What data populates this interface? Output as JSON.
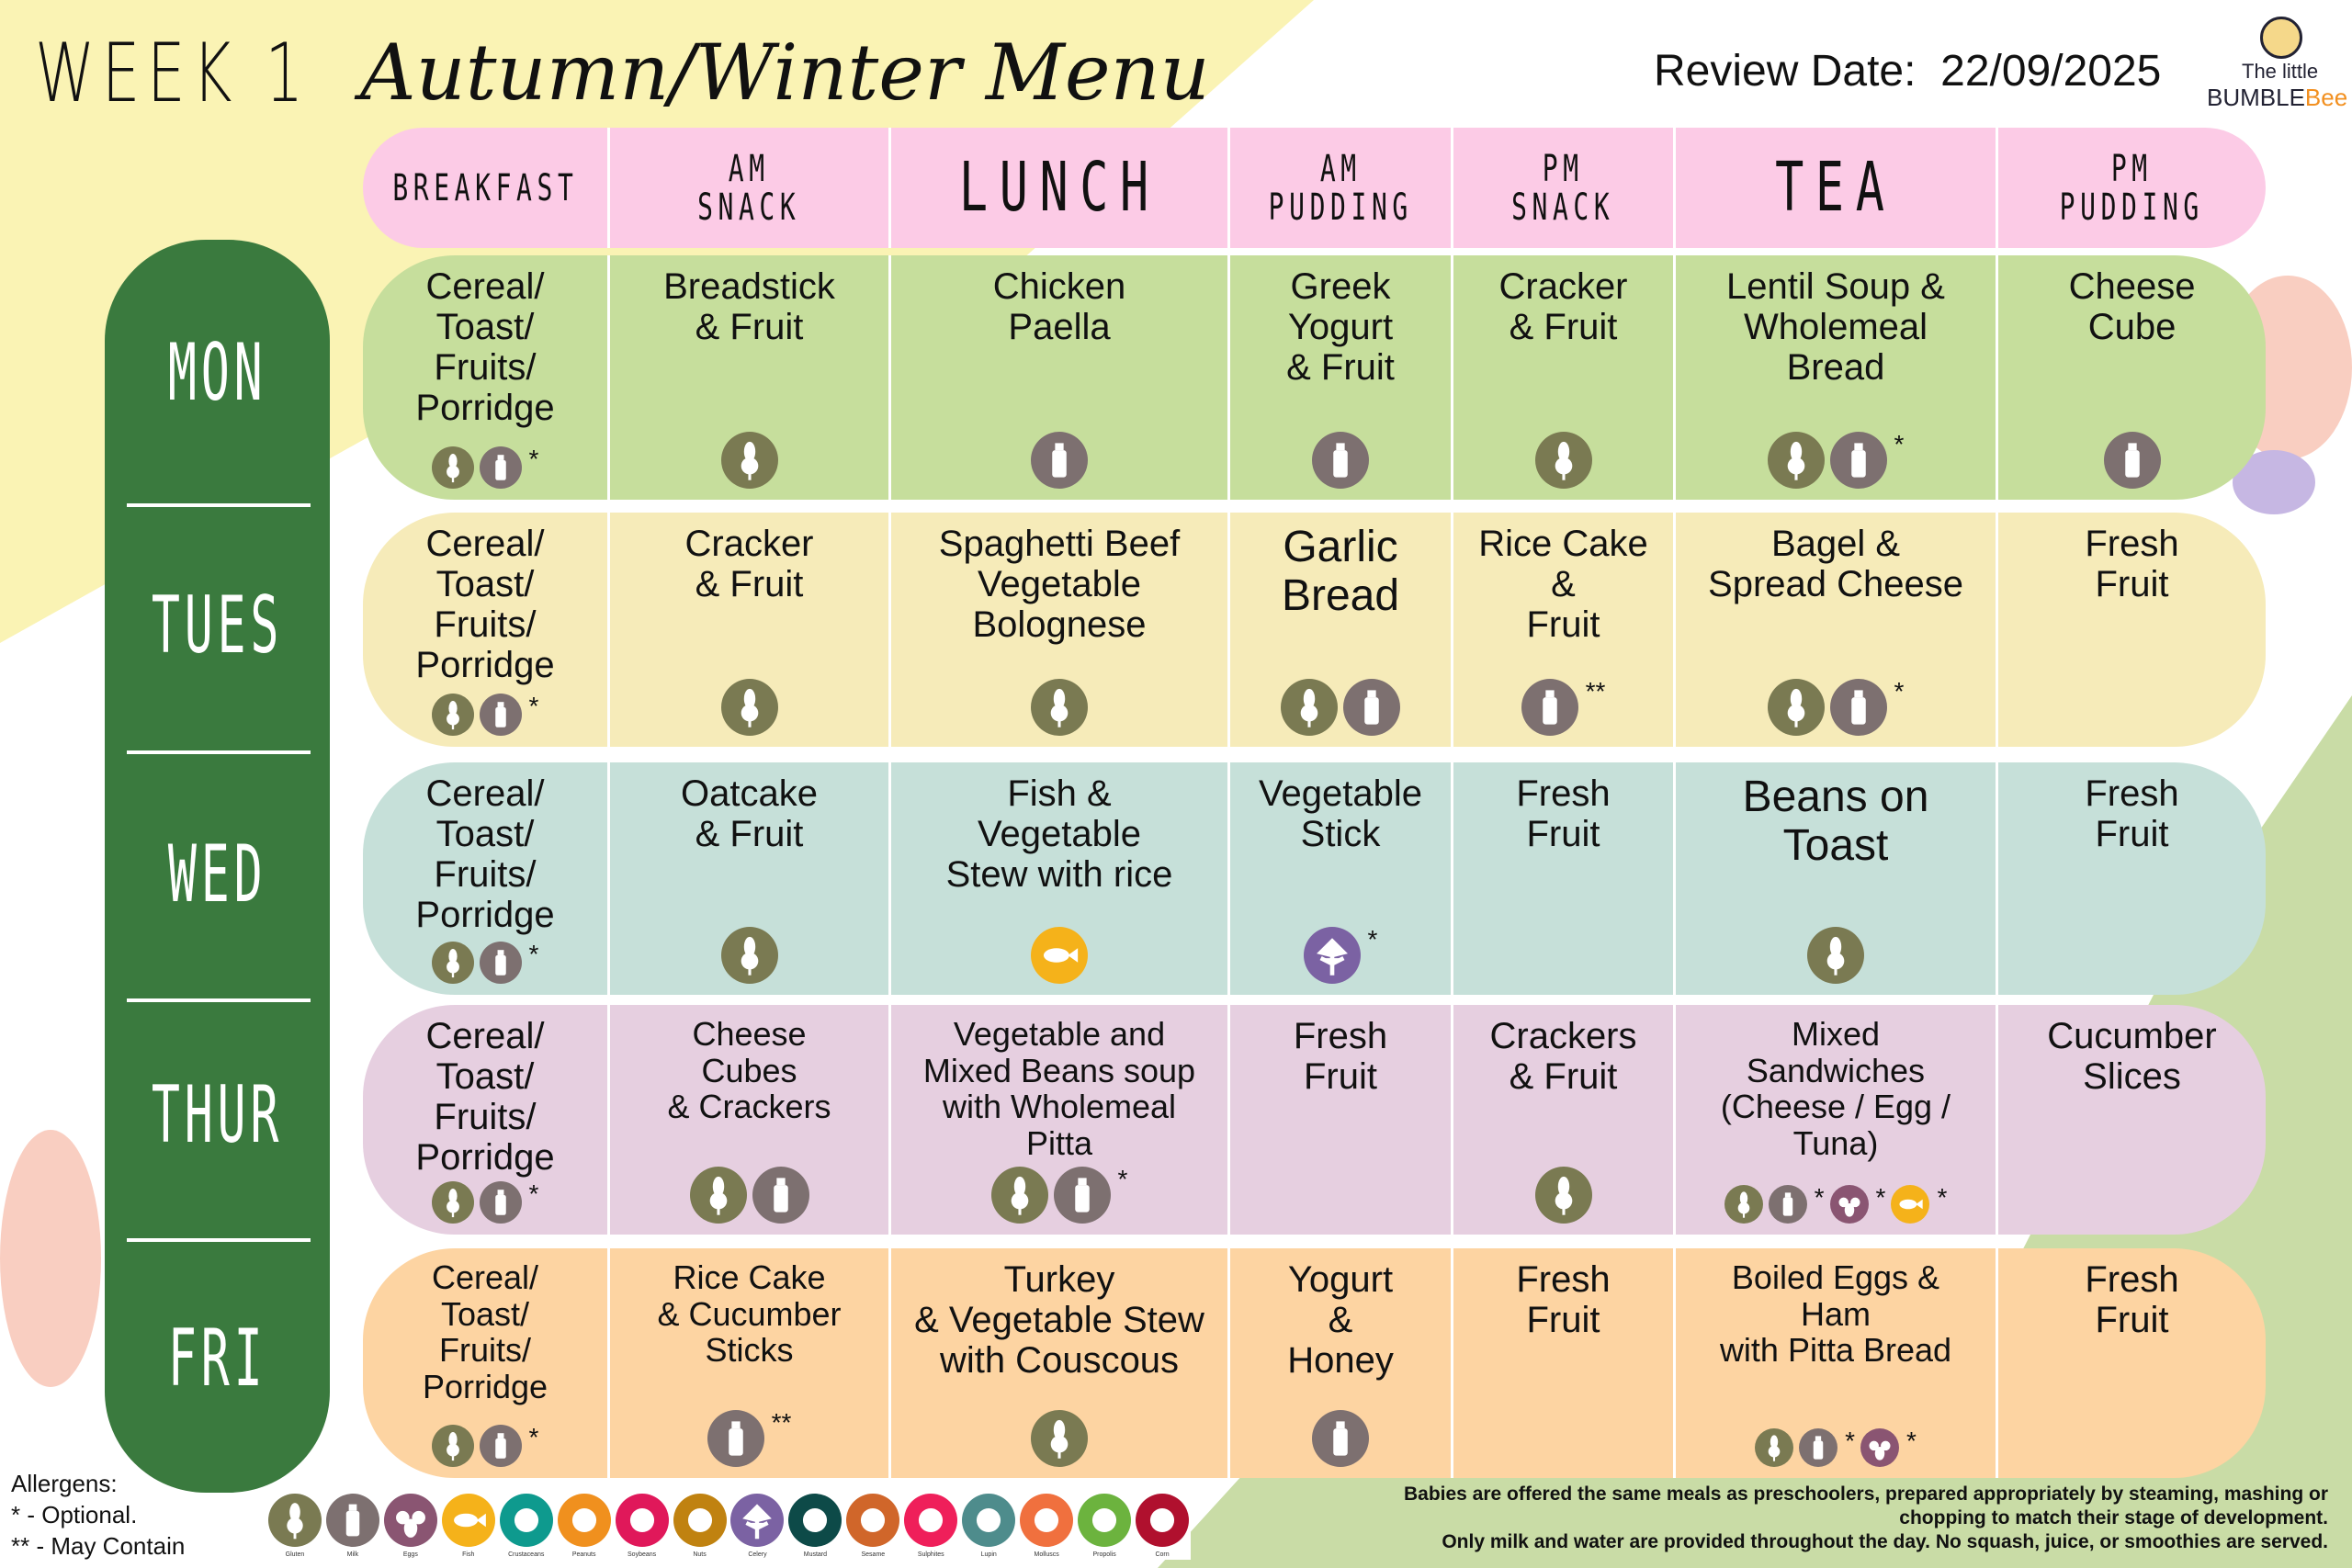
{
  "title": {
    "week": "WEEK 1",
    "menu": "Autumn/Winter Menu"
  },
  "review": {
    "label": "Review Date:",
    "date": "22/09/2025"
  },
  "logo": {
    "line1": "The little",
    "line2a": "BUMBLE",
    "line2b": "Bee"
  },
  "colors": {
    "header": "#fccbe6",
    "day_column": "#3a7a3e",
    "mon": "#c6de9c",
    "tue": "#f6ebb9",
    "wed": "#c6e0d9",
    "thu": "#e6cfe0",
    "fri": "#fdd4a2"
  },
  "columns": [
    "BREAKFAST",
    "AM\nSNACK",
    "LUNCH",
    "AM\nPUDDING",
    "PM\nSNACK",
    "TEA",
    "PM\nPUDDING"
  ],
  "days": [
    "MON",
    "TUES",
    "WED",
    "THUR",
    "FRI"
  ],
  "rows": [
    {
      "day": "MON",
      "cells": [
        {
          "text": "Cereal/\nToast/\nFruits/\nPorridge",
          "icons": [
            {
              "type": "gluten",
              "mark": ""
            },
            {
              "type": "milk",
              "mark": "*"
            }
          ]
        },
        {
          "text": "Breadstick\n& Fruit",
          "icons": [
            {
              "type": "gluten",
              "mark": ""
            }
          ]
        },
        {
          "text": "Chicken\nPaella",
          "icons": [
            {
              "type": "milk",
              "mark": ""
            }
          ]
        },
        {
          "text": "Greek\nYogurt\n& Fruit",
          "icons": [
            {
              "type": "milk",
              "mark": ""
            }
          ]
        },
        {
          "text": "Cracker\n& Fruit",
          "icons": [
            {
              "type": "gluten",
              "mark": ""
            }
          ]
        },
        {
          "text": "Lentil Soup &\nWholemeal\nBread",
          "icons": [
            {
              "type": "gluten",
              "mark": ""
            },
            {
              "type": "milk",
              "mark": "*"
            }
          ]
        },
        {
          "text": "Cheese\nCube",
          "icons": [
            {
              "type": "milk",
              "mark": ""
            }
          ]
        }
      ]
    },
    {
      "day": "TUES",
      "cells": [
        {
          "text": "Cereal/\nToast/\nFruits/\nPorridge",
          "icons": [
            {
              "type": "gluten",
              "mark": ""
            },
            {
              "type": "milk",
              "mark": "*"
            }
          ]
        },
        {
          "text": "Cracker\n& Fruit",
          "icons": [
            {
              "type": "gluten",
              "mark": ""
            }
          ]
        },
        {
          "text": "Spaghetti Beef\nVegetable\nBolognese",
          "icons": [
            {
              "type": "gluten",
              "mark": ""
            }
          ]
        },
        {
          "text": "Garlic\nBread",
          "size": "lg",
          "icons": [
            {
              "type": "gluten",
              "mark": ""
            },
            {
              "type": "milk",
              "mark": ""
            }
          ]
        },
        {
          "text": "Rice Cake\n&\nFruit",
          "icons": [
            {
              "type": "milk",
              "mark": "**"
            }
          ]
        },
        {
          "text": "Bagel &\nSpread Cheese",
          "icons": [
            {
              "type": "gluten",
              "mark": ""
            },
            {
              "type": "milk",
              "mark": "*"
            }
          ]
        },
        {
          "text": "Fresh\nFruit",
          "icons": []
        }
      ]
    },
    {
      "day": "WED",
      "cells": [
        {
          "text": "Cereal/\nToast/\nFruits/\nPorridge",
          "icons": [
            {
              "type": "gluten",
              "mark": ""
            },
            {
              "type": "milk",
              "mark": "*"
            }
          ]
        },
        {
          "text": "Oatcake\n& Fruit",
          "icons": [
            {
              "type": "gluten",
              "mark": ""
            }
          ]
        },
        {
          "text": "Fish &\nVegetable\nStew with rice",
          "icons": [
            {
              "type": "fish",
              "mark": ""
            }
          ]
        },
        {
          "text": "Vegetable\nStick",
          "icons": [
            {
              "type": "celery",
              "mark": "*"
            }
          ]
        },
        {
          "text": "Fresh\nFruit",
          "icons": []
        },
        {
          "text": "Beans on\nToast",
          "size": "lg",
          "icons": [
            {
              "type": "gluten",
              "mark": ""
            }
          ]
        },
        {
          "text": "Fresh\nFruit",
          "icons": []
        }
      ]
    },
    {
      "day": "THUR",
      "cells": [
        {
          "text": "Cereal/\nToast/\nFruits/\nPorridge",
          "icons": [
            {
              "type": "gluten",
              "mark": ""
            },
            {
              "type": "milk",
              "mark": "*"
            }
          ]
        },
        {
          "text": "Cheese\nCubes\n& Crackers",
          "size": "sm",
          "icons": [
            {
              "type": "gluten",
              "mark": ""
            },
            {
              "type": "milk",
              "mark": ""
            }
          ]
        },
        {
          "text": "Vegetable and\nMixed Beans soup\nwith  Wholemeal\nPitta",
          "size": "sm",
          "icons": [
            {
              "type": "gluten",
              "mark": ""
            },
            {
              "type": "milk",
              "mark": "*"
            }
          ]
        },
        {
          "text": "Fresh\nFruit",
          "icons": []
        },
        {
          "text": "Crackers\n& Fruit",
          "icons": [
            {
              "type": "gluten",
              "mark": ""
            }
          ]
        },
        {
          "text": "Mixed\nSandwiches\n(Cheese / Egg /\nTuna)",
          "size": "sm",
          "icons": [
            {
              "type": "gluten",
              "mark": ""
            },
            {
              "type": "milk",
              "mark": "*"
            },
            {
              "type": "eggs",
              "mark": "*"
            },
            {
              "type": "fish",
              "mark": "*"
            }
          ]
        },
        {
          "text": "Cucumber\nSlices",
          "icons": []
        }
      ]
    },
    {
      "day": "FRI",
      "cells": [
        {
          "text": "Cereal/\nToast/\nFruits/\nPorridge",
          "size": "sm",
          "icons": [
            {
              "type": "gluten",
              "mark": ""
            },
            {
              "type": "milk",
              "mark": "*"
            }
          ]
        },
        {
          "text": "Rice Cake\n& Cucumber\nSticks",
          "size": "sm",
          "icons": [
            {
              "type": "milk",
              "mark": "**"
            }
          ]
        },
        {
          "text": "Turkey\n& Vegetable Stew\nwith Couscous",
          "icons": [
            {
              "type": "gluten",
              "mark": ""
            }
          ]
        },
        {
          "text": "Yogurt\n&\nHoney",
          "icons": [
            {
              "type": "milk",
              "mark": ""
            }
          ]
        },
        {
          "text": "Fresh\nFruit",
          "icons": []
        },
        {
          "text": "Boiled Eggs  &\nHam\nwith  Pitta Bread",
          "size": "sm",
          "icons": [
            {
              "type": "gluten",
              "mark": ""
            },
            {
              "type": "milk",
              "mark": "*"
            },
            {
              "type": "eggs",
              "mark": "*"
            }
          ]
        },
        {
          "text": "Fresh\nFruit",
          "icons": []
        }
      ]
    }
  ],
  "legend": {
    "title": "Allergens:",
    "optional": "* - Optional.",
    "may_contain": "** - May Contain"
  },
  "allergens": [
    {
      "type": "gluten",
      "label": "Gluten",
      "color": "#7a7a52"
    },
    {
      "type": "milk",
      "label": "Milk",
      "color": "#7d7070"
    },
    {
      "type": "eggs",
      "label": "Eggs",
      "color": "#8a5572"
    },
    {
      "type": "fish",
      "label": "Fish",
      "color": "#f5b21a"
    },
    {
      "type": "crustaceans",
      "label": "Crustaceans",
      "color": "#0e9a8e"
    },
    {
      "type": "peanuts",
      "label": "Peanuts",
      "color": "#f0901e"
    },
    {
      "type": "soybeans",
      "label": "Soybeans",
      "color": "#e0185a"
    },
    {
      "type": "nuts",
      "label": "Nuts",
      "color": "#c08210"
    },
    {
      "type": "celery",
      "label": "Celery",
      "color": "#7b62a3"
    },
    {
      "type": "mustard",
      "label": "Mustard",
      "color": "#0d4a48"
    },
    {
      "type": "sesame",
      "label": "Sesame",
      "color": "#d0662a"
    },
    {
      "type": "sulphites",
      "label": "Sulphites",
      "color": "#ef1f5a"
    },
    {
      "type": "lupin",
      "label": "Lupin",
      "color": "#4e8c8c"
    },
    {
      "type": "molluscs",
      "label": "Molluscs",
      "color": "#f0703e"
    },
    {
      "type": "propolis",
      "label": "Propolis",
      "color": "#6cb33e"
    },
    {
      "type": "corn",
      "label": "Corn",
      "color": "#b0102e"
    }
  ],
  "notes": [
    "Babies are offered the same meals as preschoolers, prepared appropriately by steaming, mashing or",
    "chopping to match their stage of development.",
    "Only milk and water are provided throughout the day. No squash, juice, or smoothies are served."
  ]
}
